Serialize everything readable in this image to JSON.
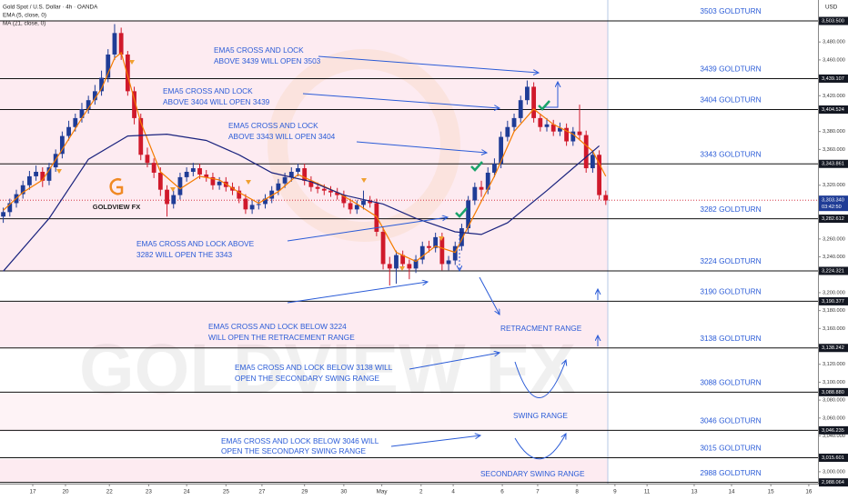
{
  "chart_data": {
    "type": "candlestick",
    "title": "Gold Spot / U.S. Dollar · 4h · OANDA",
    "currency": "USD",
    "brand": "GOLDVIEW FX",
    "colors": {
      "up": "#1f3c96",
      "down": "#d0192b",
      "level": "#111111",
      "label": "#2a5bd7"
    },
    "open": [
      3285,
      3290,
      3300,
      3310,
      3320,
      3330,
      3335,
      3325,
      3340,
      3355,
      3375,
      3385,
      3395,
      3405,
      3415,
      3425,
      3440,
      3466,
      3490,
      3466,
      3425,
      3395,
      3354,
      3345,
      3334,
      3315,
      3299,
      3309,
      3329,
      3335,
      3339,
      3332,
      3329,
      3320,
      3324,
      3318,
      3314,
      3305,
      3293,
      3298,
      3299,
      3305,
      3314,
      3322,
      3329,
      3335,
      3339,
      3325,
      3318,
      3316,
      3314,
      3312,
      3309,
      3300,
      3293,
      3298,
      3303,
      3300,
      3268,
      3232,
      3227,
      3242,
      3232,
      3227,
      3237,
      3252,
      3250,
      3262,
      3232,
      3236,
      3252,
      3272,
      3303,
      3318,
      3315,
      3334,
      3344,
      3374,
      3385,
      3395,
      3415,
      3430,
      3395,
      3385,
      3388,
      3380,
      3384,
      3369,
      3380,
      3376,
      3339,
      3354,
      3309
    ],
    "high": [
      3295,
      3305,
      3315,
      3325,
      3336,
      3342,
      3340,
      3345,
      3360,
      3380,
      3392,
      3400,
      3412,
      3420,
      3432,
      3448,
      3472,
      3500,
      3496,
      3470,
      3430,
      3400,
      3362,
      3350,
      3340,
      3320,
      3314,
      3334,
      3340,
      3345,
      3344,
      3337,
      3334,
      3329,
      3329,
      3323,
      3319,
      3310,
      3303,
      3304,
      3310,
      3319,
      3327,
      3334,
      3340,
      3344,
      3344,
      3330,
      3323,
      3321,
      3319,
      3317,
      3314,
      3305,
      3303,
      3314,
      3308,
      3305,
      3273,
      3240,
      3247,
      3247,
      3237,
      3242,
      3257,
      3258,
      3267,
      3267,
      3241,
      3257,
      3277,
      3308,
      3323,
      3325,
      3340,
      3350,
      3380,
      3392,
      3400,
      3420,
      3437,
      3435,
      3400,
      3395,
      3393,
      3390,
      3389,
      3385,
      3410,
      3381,
      3359,
      3359,
      3314
    ],
    "low": [
      3278,
      3285,
      3295,
      3305,
      3315,
      3325,
      3318,
      3320,
      3335,
      3350,
      3370,
      3380,
      3390,
      3400,
      3410,
      3420,
      3435,
      3460,
      3460,
      3420,
      3388,
      3348,
      3340,
      3328,
      3308,
      3285,
      3294,
      3304,
      3324,
      3330,
      3327,
      3324,
      3315,
      3315,
      3313,
      3309,
      3300,
      3288,
      3288,
      3293,
      3294,
      3300,
      3309,
      3317,
      3324,
      3330,
      3320,
      3313,
      3311,
      3309,
      3307,
      3304,
      3295,
      3288,
      3288,
      3293,
      3295,
      3263,
      3226,
      3208,
      3210,
      3227,
      3215,
      3222,
      3232,
      3245,
      3245,
      3225,
      3225,
      3231,
      3247,
      3267,
      3298,
      3307,
      3310,
      3329,
      3339,
      3369,
      3380,
      3390,
      3410,
      3390,
      3380,
      3380,
      3375,
      3375,
      3364,
      3364,
      3370,
      3334,
      3334,
      3304,
      3298
    ],
    "close": [
      3290,
      3300,
      3310,
      3320,
      3330,
      3335,
      3325,
      3340,
      3355,
      3375,
      3385,
      3395,
      3405,
      3415,
      3425,
      3440,
      3466,
      3490,
      3466,
      3425,
      3395,
      3354,
      3345,
      3334,
      3315,
      3299,
      3309,
      3329,
      3335,
      3339,
      3332,
      3329,
      3320,
      3324,
      3318,
      3314,
      3305,
      3293,
      3298,
      3299,
      3305,
      3314,
      3322,
      3329,
      3335,
      3339,
      3325,
      3318,
      3316,
      3314,
      3312,
      3309,
      3300,
      3293,
      3298,
      3303,
      3300,
      3268,
      3232,
      3227,
      3242,
      3232,
      3227,
      3237,
      3252,
      3250,
      3262,
      3232,
      3236,
      3252,
      3272,
      3303,
      3318,
      3315,
      3334,
      3344,
      3374,
      3385,
      3395,
      3415,
      3430,
      3395,
      3385,
      3388,
      3380,
      3384,
      3369,
      3380,
      3376,
      3339,
      3354,
      3309,
      3303
    ],
    "overlays": [
      {
        "name": "EMA (5, close, 0)",
        "color": "#f57c00",
        "x": [
          0,
          3,
          6,
          9,
          12,
          15,
          17,
          18,
          21,
          24,
          27,
          30,
          33,
          36,
          39,
          42,
          45,
          48,
          51,
          54,
          57,
          60,
          63,
          66,
          69,
          72,
          75,
          78,
          81,
          84,
          87,
          90,
          92
        ],
        "values": [
          3292,
          3312,
          3326,
          3360,
          3395,
          3428,
          3462,
          3468,
          3390,
          3335,
          3316,
          3330,
          3326,
          3312,
          3300,
          3313,
          3332,
          3322,
          3312,
          3299,
          3285,
          3245,
          3235,
          3252,
          3245,
          3288,
          3330,
          3380,
          3405,
          3388,
          3377,
          3358,
          3330
        ]
      },
      {
        "name": "MA (21, close, 0)",
        "color": "#1a237e",
        "x": [
          0,
          7,
          13,
          19,
          25,
          31,
          36,
          41,
          47,
          52,
          58,
          63,
          69,
          73,
          77,
          83,
          87,
          91
        ],
        "values": [
          3224,
          3283,
          3349,
          3375,
          3377,
          3370,
          3354,
          3334,
          3324,
          3309,
          3299,
          3283,
          3268,
          3265,
          3278,
          3314,
          3339,
          3364
        ]
      }
    ],
    "xlim": [
      -0.5,
      124.4
    ],
    "xticks": [
      {
        "value": 4.5,
        "label": "17"
      },
      {
        "value": 9.5,
        "label": "20"
      },
      {
        "value": 16.2,
        "label": "22"
      },
      {
        "value": 22.2,
        "label": "23"
      },
      {
        "value": 28,
        "label": "24"
      },
      {
        "value": 34,
        "label": "25"
      },
      {
        "value": 39.5,
        "label": "27"
      },
      {
        "value": 46,
        "label": "29"
      },
      {
        "value": 52,
        "label": "30"
      },
      {
        "value": 57.8,
        "label": "May"
      },
      {
        "value": 63.8,
        "label": "2"
      },
      {
        "value": 68.7,
        "label": "4"
      },
      {
        "value": 76.2,
        "label": "6"
      },
      {
        "value": 81.6,
        "label": "7"
      },
      {
        "value": 87.6,
        "label": "8"
      },
      {
        "value": 93.4,
        "label": "9"
      },
      {
        "value": 98.3,
        "label": "11"
      },
      {
        "value": 105.5,
        "label": "13"
      },
      {
        "value": 111.2,
        "label": "14"
      },
      {
        "value": 117.2,
        "label": "15"
      },
      {
        "value": 123,
        "label": "16"
      }
    ],
    "ylim": [
      2986.7,
      3526.9
    ],
    "yticks": [
      {
        "value": 3480,
        "label": "3,480.000"
      },
      {
        "value": 3460,
        "label": "3,460.000"
      },
      {
        "value": 3420,
        "label": "3,420.000"
      },
      {
        "value": 3380,
        "label": "3,380.000"
      },
      {
        "value": 3360,
        "label": "3,360.000"
      },
      {
        "value": 3320,
        "label": "3,320.000"
      },
      {
        "value": 3260,
        "label": "3,260.000"
      },
      {
        "value": 3240,
        "label": "3,240.000"
      },
      {
        "value": 3200,
        "label": "3,200.000"
      },
      {
        "value": 3180,
        "label": "3,180.000"
      },
      {
        "value": 3160,
        "label": "3,160.000"
      },
      {
        "value": 3120,
        "label": "3,120.000"
      },
      {
        "value": 3100,
        "label": "3,100.000"
      },
      {
        "value": 3080,
        "label": "3,080.000"
      },
      {
        "value": 3060,
        "label": "3,060.000"
      },
      {
        "value": 3040,
        "label": "3,040.000"
      },
      {
        "value": 3000,
        "label": "3,000.000"
      }
    ],
    "grid": false,
    "levels": [
      {
        "value": 3503.5,
        "label": "3,503.500",
        "name": "3503 GOLDTURN"
      },
      {
        "value": 3439.107,
        "label": "3,439.107",
        "name": "3439 GOLDTURN"
      },
      {
        "value": 3404.524,
        "label": "3,404.524",
        "name": "3404 GOLDTURN"
      },
      {
        "value": 3343.861,
        "label": "3,343.861",
        "name": "3343 GOLDTURN"
      },
      {
        "value": 3282.612,
        "label": "3,282.612",
        "name": "3282 GOLDTURN"
      },
      {
        "value": 3224.321,
        "label": "3,224.321",
        "name": "3224 GOLDTURN"
      },
      {
        "value": 3190.377,
        "label": "3,190.377",
        "name": "3190 GOLDTURN"
      },
      {
        "value": 3138.242,
        "label": "3,138.242",
        "name": "3138 GOLDTURN"
      },
      {
        "value": 3088.88,
        "label": "3,088.880",
        "name": "3088 GOLDTURN"
      },
      {
        "value": 3046.235,
        "label": "3,046.235",
        "name": "3046 GOLDTURN"
      },
      {
        "value": 3015.601,
        "label": "3,015.601",
        "name": "3015 GOLDTURN"
      },
      {
        "value": 2988.064,
        "label": "2,988.064",
        "name": "2988 GOLDTURN"
      }
    ],
    "last_price": {
      "value": 3303.34,
      "label": "3,303.340",
      "countdown": "03:42:50"
    },
    "annotations": [
      {
        "lines": [
          "EMA5 CROSS AND LOCK",
          "ABOVE 3439 WILL OPEN 3503"
        ]
      },
      {
        "lines": [
          "EMA5 CROSS AND LOCK",
          "ABOVE 3404 WILL OPEN 3439"
        ]
      },
      {
        "lines": [
          "EMA5 CROSS AND LOCK",
          "ABOVE 3343 WILL OPEN 3404"
        ]
      },
      {
        "lines": [
          "EMA5 CROSS AND LOCK ABOVE",
          "3282 WILL OPEN THE 3343"
        ]
      },
      {
        "lines": [
          "EMA5 CROSS AND LOCK BELOW 3224",
          "WILL OPEN THE RETRACEMENT RANGE"
        ]
      },
      {
        "lines": [
          "EMA5 CROSS AND LOCK BELOW 3138 WILL",
          "OPEN THE SECONDARY SWING RANGE"
        ]
      },
      {
        "lines": [
          "EMA5 CROSS AND LOCK BELOW 3046 WILL",
          "OPEN THE SECONDARY SWING RANGE"
        ]
      }
    ],
    "range_labels": [
      "RETRACMENT RANGE",
      "SWING RANGE",
      "SECONDARY SWING RANGE"
    ]
  }
}
